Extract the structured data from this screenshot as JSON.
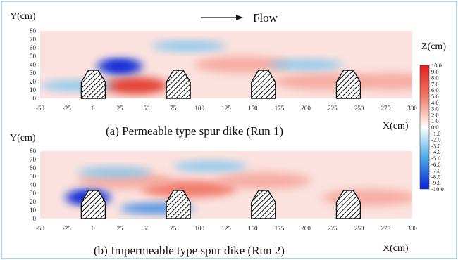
{
  "figure": {
    "flow_label": "Flow",
    "colorbar": {
      "title": "Z(cm)",
      "ticks": [
        "10.0",
        "9.0",
        "8.0",
        "7.0",
        "6.0",
        "5.0",
        "4.0",
        "3.0",
        "2.0",
        "1.0",
        "0.0",
        "-1.0",
        "-2.0",
        "-3.0",
        "-4.0",
        "-5.0",
        "-6.0",
        "-7.0",
        "-8.0",
        "-9.0",
        "-10.0"
      ]
    }
  },
  "chart_data": [
    {
      "type": "heatmap",
      "title": "(a) Permeable type spur dike (Run 1)",
      "xlabel": "X(cm)",
      "ylabel": "Y(cm)",
      "xlim": [
        -50,
        300
      ],
      "ylim": [
        0,
        80
      ],
      "xticks": [
        "-50",
        "-25",
        "0",
        "25",
        "50",
        "75",
        "100",
        "125",
        "150",
        "175",
        "200",
        "225",
        "250",
        "275",
        "300"
      ],
      "yticks": [
        "0",
        "10",
        "20",
        "30",
        "40",
        "50",
        "60",
        "70",
        "80"
      ],
      "value_range": [
        -10,
        10
      ],
      "dikes_x": [
        0,
        80,
        160,
        240
      ],
      "scour": [
        {
          "x": 25,
          "y": 38,
          "depth": -7
        },
        {
          "x": -15,
          "y": 15,
          "depth": -3
        },
        {
          "x": 90,
          "y": 62,
          "depth": -2
        },
        {
          "x": 200,
          "y": 40,
          "depth": -2
        }
      ],
      "deposition": [
        {
          "x": 40,
          "y": 15,
          "height": 8
        },
        {
          "x": 140,
          "y": 40,
          "height": 3
        },
        {
          "x": 215,
          "y": 20,
          "height": 3
        },
        {
          "x": 280,
          "y": 20,
          "height": 3
        }
      ]
    },
    {
      "type": "heatmap",
      "title": "(b) Impermeable type spur dike (Run 2)",
      "xlabel": "X(cm)",
      "ylabel": "Y(cm)",
      "xlim": [
        -50,
        300
      ],
      "ylim": [
        0,
        80
      ],
      "xticks": [
        "-50",
        "-25",
        "0",
        "25",
        "50",
        "75",
        "100",
        "125",
        "150",
        "175",
        "200",
        "225",
        "250",
        "275",
        "300"
      ],
      "yticks": [
        "0",
        "10",
        "20",
        "30",
        "40",
        "50",
        "60",
        "70",
        "80"
      ],
      "value_range": [
        -10,
        10
      ],
      "dikes_x": [
        0,
        80,
        160,
        240
      ],
      "scour": [
        {
          "x": -5,
          "y": 25,
          "depth": -8
        },
        {
          "x": 60,
          "y": 12,
          "depth": -4
        },
        {
          "x": 110,
          "y": 62,
          "depth": -3
        },
        {
          "x": 20,
          "y": 55,
          "depth": -2
        }
      ],
      "deposition": [
        {
          "x": 90,
          "y": 35,
          "height": 4
        },
        {
          "x": 160,
          "y": 45,
          "height": 3
        },
        {
          "x": 30,
          "y": 45,
          "height": 3
        },
        {
          "x": 260,
          "y": 25,
          "height": 3
        }
      ]
    }
  ]
}
